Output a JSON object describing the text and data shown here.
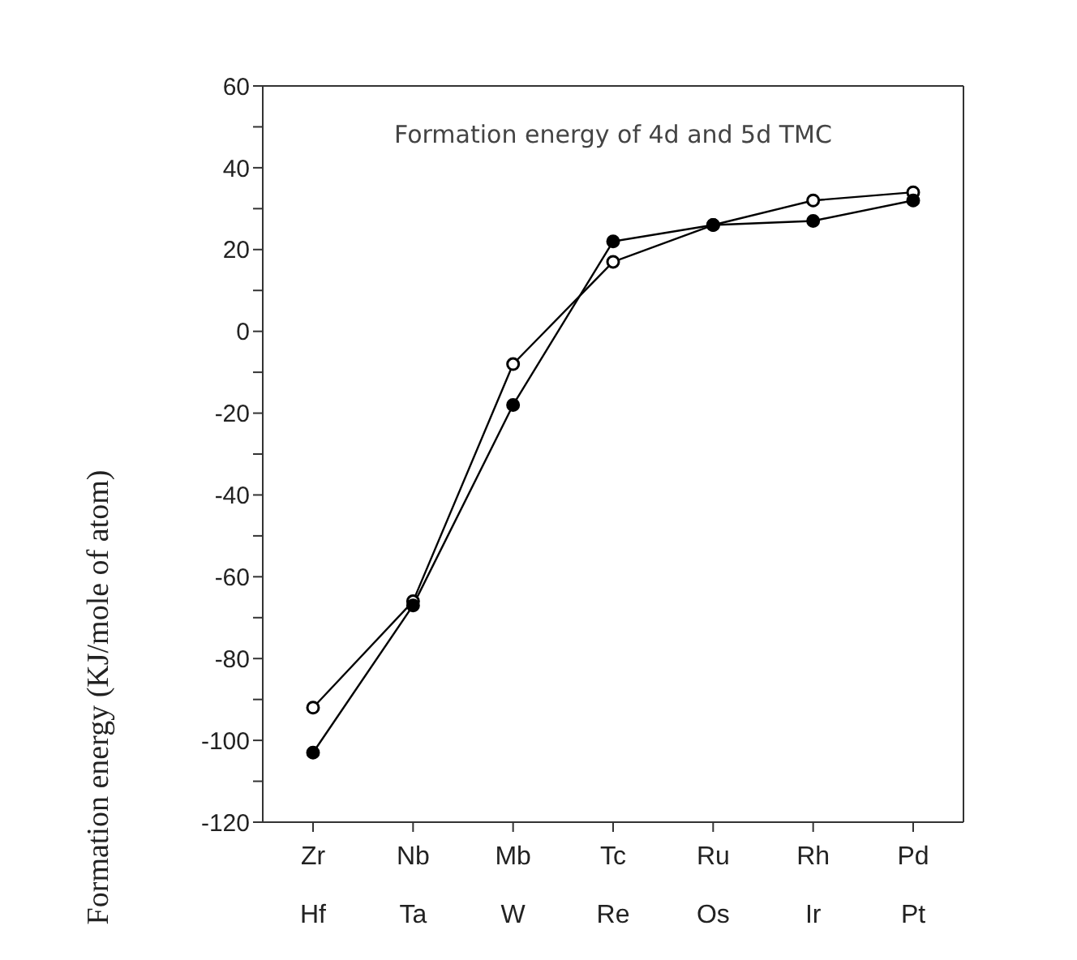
{
  "chart_data": {
    "type": "line",
    "title": "Formation energy of 4d and 5d TMC",
    "ylabel": "Formation energy (KJ/mole of atom)",
    "categories": [
      "Zr\nHf",
      "Nb\nTa",
      "Mb\nW",
      "Tc\nRe",
      "Ru\nOs",
      "Rh\nIr",
      "Pd\nPt"
    ],
    "series": [
      {
        "color": "#000000",
        "values": [
          -92,
          -66,
          -8,
          17,
          26,
          32,
          34
        ]
      },
      {
        "color": "#000000",
        "values": [
          -103,
          -67,
          -18,
          22,
          26,
          27,
          32
        ]
      }
    ],
    "ylim": [
      -120,
      60
    ],
    "yticks": [
      -120,
      {
        "value": -110,
        "label": null
      },
      -100,
      {
        "value": -90,
        "label": null
      },
      -80,
      {
        "value": -70,
        "label": null
      },
      -60,
      {
        "value": -50,
        "label": null
      },
      -40,
      {
        "value": -30,
        "label": null
      },
      -20,
      {
        "value": -10,
        "label": null
      },
      0,
      {
        "value": 10,
        "label": null
      },
      20,
      {
        "value": 30,
        "label": null
      },
      40,
      {
        "value": 50,
        "label": null
      },
      60
    ],
    "grid": false,
    "legend": false,
    "marker": "circle",
    "line_style": "solid"
  }
}
